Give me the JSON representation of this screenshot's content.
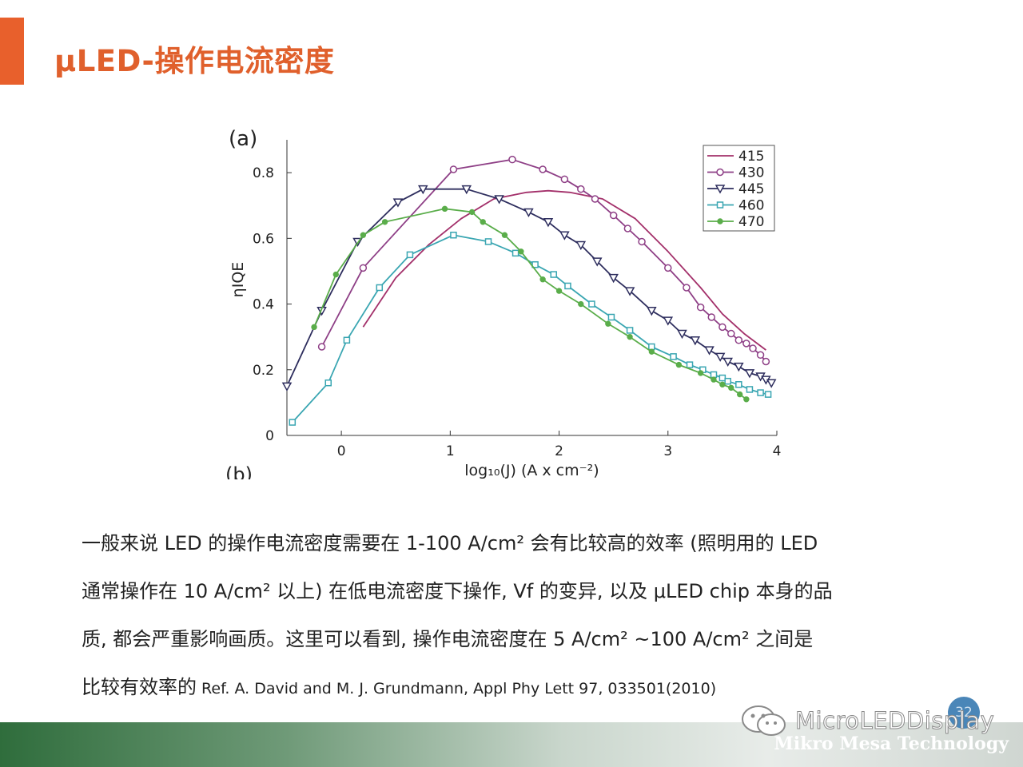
{
  "slide": {
    "title": "μLED-操作电流密度",
    "page_number": "32"
  },
  "body": {
    "line1": "一般来说 LED 的操作电流密度需要在 1-100 A/cm² 会有比较高的效率 (照明用的 LED",
    "line2": "通常操作在 10 A/cm² 以上) 在低电流密度下操作, Vf 的变异, 以及 μLED chip 本身的品",
    "line3": "质, 都会严重影响画质。这里可以看到, 操作电流密度在 5 A/cm² ~100 A/cm² 之间是",
    "line4_main": "比较有效率的",
    "line4_ref": " Ref. A. David and M. J. Grundmann, Appl Phy Lett 97, 033501(2010)"
  },
  "footer": {
    "watermark": "MicroLEDDisplay",
    "company": "Mikro Mesa Technology"
  },
  "colors": {
    "accent": "#e8602c",
    "s415": "#a3306a",
    "s430": "#8e3f86",
    "s445": "#2e2e5e",
    "s460": "#3aa6b2",
    "s470": "#5aad4a"
  },
  "chart_data": {
    "type": "line",
    "panel_label": "(a)",
    "next_panel_label": "(b)",
    "xlabel": "log₁₀(J) (A x cm⁻²)",
    "ylabel": "ηIQE",
    "xlim": [
      -0.5,
      4
    ],
    "ylim": [
      0,
      0.9
    ],
    "xticks": [
      0,
      1,
      2,
      3,
      4
    ],
    "yticks": [
      0,
      0.2,
      0.4,
      0.6,
      0.8
    ],
    "xtick_labels": [
      "0",
      "1",
      "2",
      "3",
      "4"
    ],
    "ytick_labels": [
      "0",
      "0.2",
      "0.4",
      "0.6",
      "0.8"
    ],
    "grid": false,
    "legend_position": "top-right",
    "series": [
      {
        "name": "415",
        "marker": "none",
        "color": "#a3306a",
        "x": [
          0.2,
          0.5,
          0.8,
          1.1,
          1.4,
          1.7,
          1.9,
          2.1,
          2.4,
          2.7,
          3.0,
          3.3,
          3.5,
          3.7,
          3.9
        ],
        "y": [
          0.33,
          0.48,
          0.58,
          0.66,
          0.72,
          0.74,
          0.745,
          0.74,
          0.72,
          0.66,
          0.56,
          0.45,
          0.37,
          0.31,
          0.26
        ]
      },
      {
        "name": "430",
        "marker": "circle",
        "color": "#8e3f86",
        "x": [
          -0.18,
          0.2,
          1.03,
          1.57,
          1.85,
          2.05,
          2.2,
          2.33,
          2.5,
          2.63,
          2.76,
          3.0,
          3.17,
          3.3,
          3.4,
          3.5,
          3.58,
          3.65,
          3.72,
          3.78,
          3.85,
          3.9
        ],
        "y": [
          0.27,
          0.51,
          0.81,
          0.84,
          0.81,
          0.78,
          0.75,
          0.72,
          0.67,
          0.63,
          0.59,
          0.51,
          0.45,
          0.39,
          0.36,
          0.33,
          0.31,
          0.29,
          0.28,
          0.265,
          0.245,
          0.225
        ]
      },
      {
        "name": "445",
        "marker": "triangle-down",
        "color": "#2e2e5e",
        "x": [
          -0.5,
          -0.18,
          0.15,
          0.52,
          0.75,
          1.15,
          1.45,
          1.72,
          1.9,
          2.05,
          2.2,
          2.35,
          2.5,
          2.65,
          2.85,
          3.0,
          3.13,
          3.25,
          3.38,
          3.48,
          3.55,
          3.65,
          3.75,
          3.85,
          3.9,
          3.95
        ],
        "y": [
          0.15,
          0.38,
          0.59,
          0.71,
          0.75,
          0.75,
          0.72,
          0.68,
          0.65,
          0.61,
          0.58,
          0.53,
          0.48,
          0.44,
          0.38,
          0.35,
          0.31,
          0.29,
          0.26,
          0.24,
          0.225,
          0.21,
          0.19,
          0.18,
          0.17,
          0.16
        ]
      },
      {
        "name": "460",
        "marker": "square",
        "color": "#3aa6b2",
        "x": [
          -0.45,
          -0.12,
          0.05,
          0.35,
          0.63,
          1.03,
          1.35,
          1.6,
          1.78,
          1.95,
          2.08,
          2.3,
          2.48,
          2.65,
          2.85,
          3.05,
          3.2,
          3.32,
          3.42,
          3.5,
          3.55,
          3.65,
          3.75,
          3.85,
          3.92
        ],
        "y": [
          0.04,
          0.16,
          0.29,
          0.45,
          0.55,
          0.61,
          0.59,
          0.555,
          0.52,
          0.49,
          0.455,
          0.4,
          0.36,
          0.32,
          0.27,
          0.24,
          0.215,
          0.2,
          0.185,
          0.175,
          0.165,
          0.155,
          0.14,
          0.13,
          0.125
        ]
      },
      {
        "name": "470",
        "marker": "dot",
        "color": "#5aad4a",
        "x": [
          -0.25,
          -0.05,
          0.2,
          0.4,
          0.95,
          1.2,
          1.3,
          1.5,
          1.65,
          1.85,
          2.0,
          2.2,
          2.45,
          2.65,
          2.85,
          3.1,
          3.3,
          3.42,
          3.5,
          3.58,
          3.66,
          3.72
        ],
        "y": [
          0.33,
          0.49,
          0.61,
          0.65,
          0.69,
          0.68,
          0.65,
          0.61,
          0.56,
          0.475,
          0.44,
          0.4,
          0.34,
          0.3,
          0.255,
          0.215,
          0.19,
          0.17,
          0.155,
          0.145,
          0.125,
          0.11
        ]
      }
    ]
  }
}
